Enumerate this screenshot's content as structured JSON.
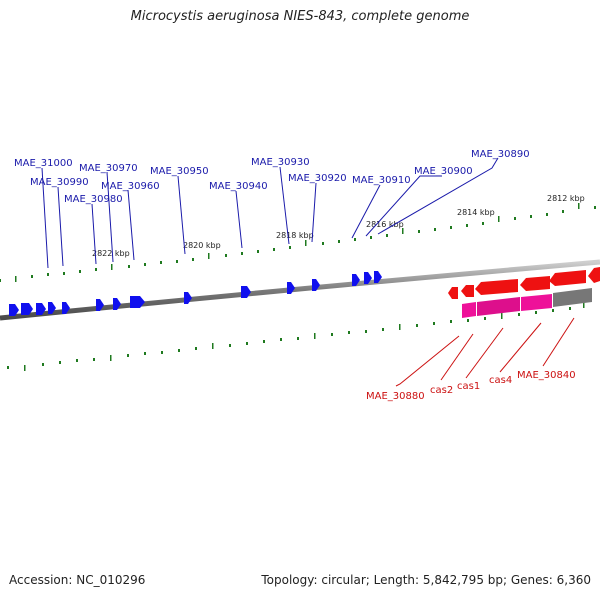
{
  "title": "Microcystis aeruginosa NIES-843, complete genome",
  "accession": "Accession: NC_010296",
  "topology": "Topology: circular; Length: 5,842,795 bp; Genes: 6,360",
  "colors": {
    "forward_gene": "#1010ee",
    "forward_label": "#1a1aaa",
    "reverse_gene": "#ee1111",
    "reverse_label": "#cc1111",
    "cas_gene": "#ee1199",
    "other_gene": "#777777",
    "tick": "#1f7a1f",
    "backbone": "#808080"
  },
  "kbp_labels": [
    {
      "text": "2822 kbp"
    },
    {
      "text": "2820 kbp"
    },
    {
      "text": "2818 kbp"
    },
    {
      "text": "2816 kbp"
    },
    {
      "text": "2814 kbp"
    },
    {
      "text": "2812 kbp"
    }
  ],
  "forward_labels": [
    {
      "text": "MAE_31000"
    },
    {
      "text": "MAE_30990"
    },
    {
      "text": "MAE_30980"
    },
    {
      "text": "MAE_30970"
    },
    {
      "text": "MAE_30960"
    },
    {
      "text": "MAE_30950"
    },
    {
      "text": "MAE_30940"
    },
    {
      "text": "MAE_30930"
    },
    {
      "text": "MAE_30920"
    },
    {
      "text": "MAE_30910"
    },
    {
      "text": "MAE_30900"
    },
    {
      "text": "MAE_30890"
    }
  ],
  "reverse_labels": [
    {
      "text": "MAE_30880"
    },
    {
      "text": "cas2"
    },
    {
      "text": "cas1"
    },
    {
      "text": "cas4"
    },
    {
      "text": "MAE_30840"
    }
  ]
}
